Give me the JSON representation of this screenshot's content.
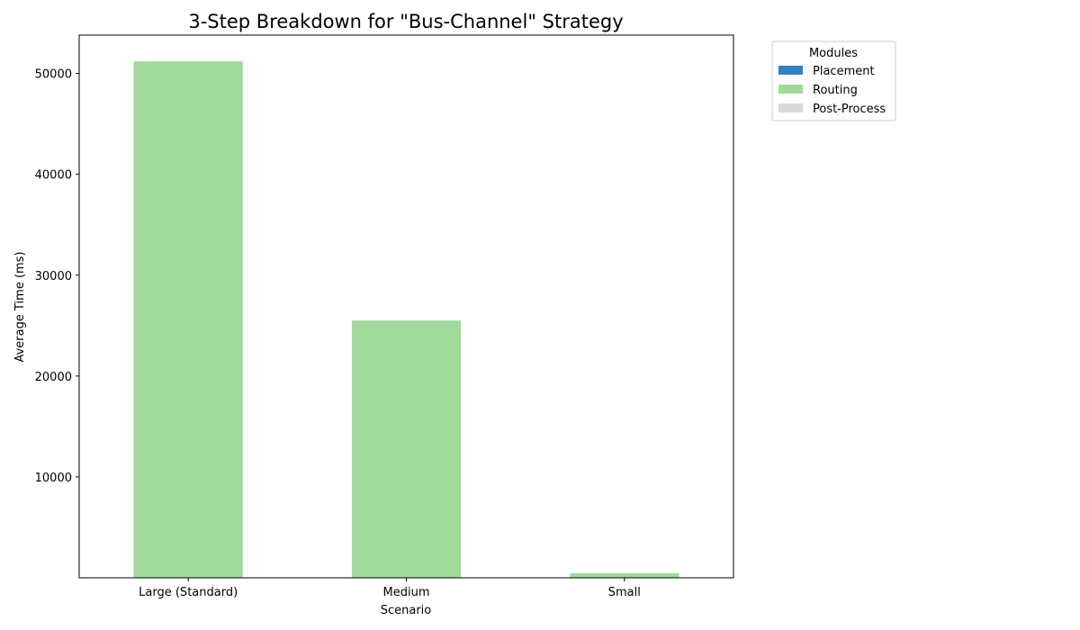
{
  "chart_data": {
    "type": "bar",
    "stacked": true,
    "title": "3-Step Breakdown for \"Bus-Channel\" Strategy",
    "xlabel": "Scenario",
    "ylabel": "Average Time (ms)",
    "categories": [
      "Large (Standard)",
      "Medium",
      "Small"
    ],
    "series": [
      {
        "name": "Placement",
        "color": "#3182bd",
        "values": [
          0,
          0,
          0
        ]
      },
      {
        "name": "Routing",
        "color": "#a1d99b",
        "values": [
          51200,
          25500,
          450
        ]
      },
      {
        "name": "Post-Process",
        "color": "#d9d9d9",
        "values": [
          0,
          0,
          0
        ]
      }
    ],
    "ylim": [
      0,
      53800
    ],
    "yticks": [
      10000,
      20000,
      30000,
      40000,
      50000
    ],
    "grid": false,
    "legend": {
      "title": "Modules",
      "placement": "outside-top-right"
    }
  }
}
